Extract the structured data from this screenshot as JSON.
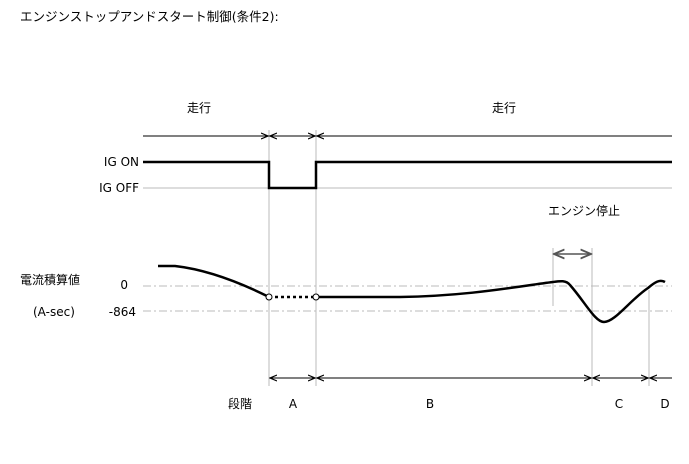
{
  "title": "エンジンストップアンドスタート制御(条件2):",
  "labels": {
    "running_1": "走行",
    "running_2": "走行",
    "ig_on": "IG ON",
    "ig_off": "IG OFF",
    "engine_stop": "エンジン停止",
    "current_integral": "電流積算値",
    "unit": "(A-sec)",
    "zero": "0",
    "threshold": "-864",
    "phase": "段階",
    "phase_a": "A",
    "phase_b": "B",
    "phase_c": "C",
    "phase_d": "D"
  },
  "colors": {
    "line": "#000000",
    "grid": "#bbbbbb"
  }
}
